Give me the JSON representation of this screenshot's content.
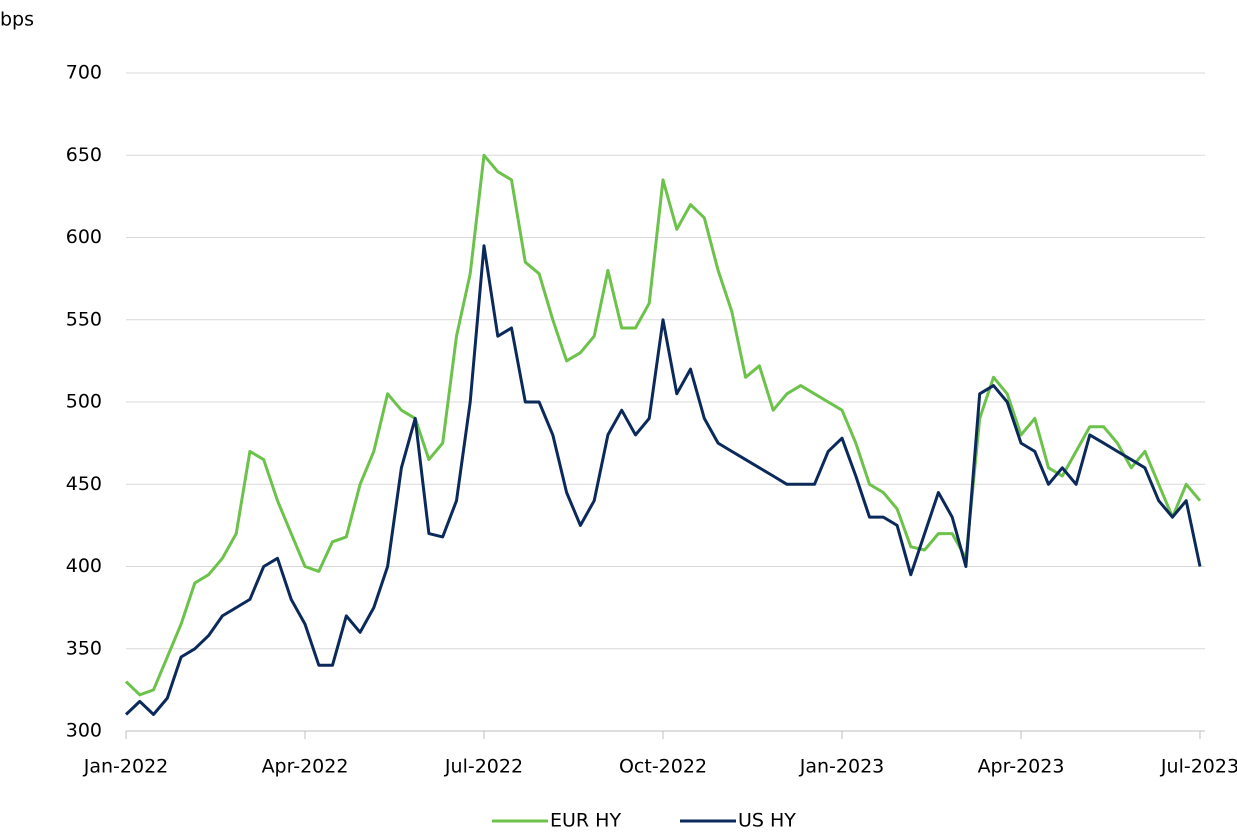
{
  "chart_data": {
    "type": "line",
    "y_label": "bps",
    "categories": [
      "Jan-2022",
      null,
      null,
      null,
      null,
      null,
      null,
      null,
      null,
      null,
      null,
      null,
      null,
      "Apr-2022",
      null,
      null,
      null,
      null,
      null,
      null,
      null,
      null,
      null,
      null,
      null,
      null,
      "Jul-2022",
      null,
      null,
      null,
      null,
      null,
      null,
      null,
      null,
      null,
      null,
      null,
      null,
      "Oct-2022",
      null,
      null,
      null,
      null,
      null,
      null,
      null,
      null,
      null,
      null,
      null,
      null,
      "Jan-2023",
      null,
      null,
      null,
      null,
      null,
      null,
      null,
      null,
      null,
      null,
      null,
      null,
      "Apr-2023",
      null,
      null,
      null,
      null,
      null,
      null,
      null,
      null,
      null,
      null,
      null,
      null,
      "Jul-2023"
    ],
    "series": [
      {
        "name": "EUR HY",
        "color": "#6cc24a",
        "values": [
          330,
          322,
          325,
          345,
          365,
          390,
          395,
          405,
          420,
          470,
          465,
          440,
          420,
          400,
          397,
          415,
          418,
          450,
          470,
          505,
          495,
          490,
          465,
          475,
          540,
          578,
          650,
          640,
          635,
          585,
          578,
          550,
          525,
          530,
          540,
          580,
          545,
          545,
          560,
          635,
          605,
          620,
          612,
          580,
          555,
          515,
          522,
          495,
          505,
          510,
          505,
          500,
          495,
          475,
          450,
          445,
          435,
          412,
          410,
          420,
          420,
          405,
          490,
          515,
          505,
          480,
          490,
          460,
          455,
          470,
          485,
          485,
          475,
          460,
          470,
          450,
          430,
          450,
          440
        ]
      },
      {
        "name": "US HY",
        "color": "#0b2a5b",
        "values": [
          310,
          318,
          310,
          320,
          345,
          350,
          358,
          370,
          375,
          380,
          400,
          405,
          380,
          365,
          340,
          340,
          370,
          360,
          375,
          400,
          460,
          490,
          420,
          418,
          440,
          500,
          595,
          540,
          545,
          500,
          500,
          480,
          445,
          425,
          440,
          480,
          495,
          480,
          490,
          550,
          505,
          520,
          490,
          475,
          470,
          465,
          460,
          455,
          450,
          450,
          450,
          470,
          478,
          455,
          430,
          430,
          425,
          395,
          420,
          445,
          430,
          400,
          505,
          510,
          500,
          475,
          470,
          450,
          460,
          450,
          480,
          475,
          470,
          465,
          460,
          440,
          430,
          440,
          400
        ]
      }
    ],
    "ylim": [
      300,
      700
    ],
    "yticks": [
      300,
      350,
      400,
      450,
      500,
      550,
      600,
      650,
      700
    ],
    "grid": true,
    "legend": "bottom"
  }
}
